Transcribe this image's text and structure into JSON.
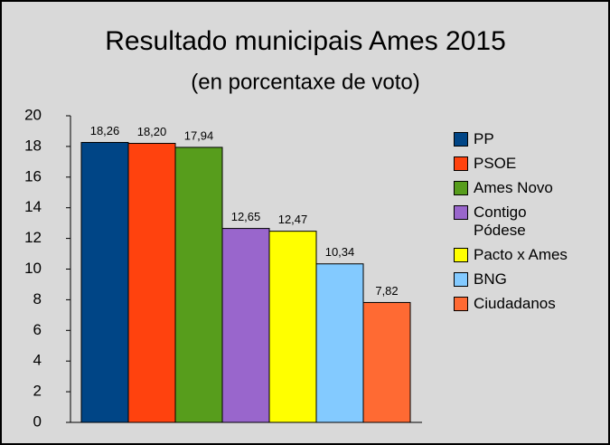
{
  "chart_data": {
    "type": "bar",
    "title": "Resultado municipais Ames 2015",
    "subtitle": "(en porcentaxe de voto)",
    "categories": [
      null
    ],
    "series": [
      {
        "name": "PP",
        "color": "#004586",
        "values": [
          18.26
        ],
        "value_labels": [
          "18,26"
        ]
      },
      {
        "name": "PSOE",
        "color": "#ff420e",
        "values": [
          18.2
        ],
        "value_labels": [
          "18,20"
        ]
      },
      {
        "name": "Ames Novo",
        "color": "#579d1c",
        "values": [
          17.94
        ],
        "value_labels": [
          "17,94"
        ]
      },
      {
        "name": "Contigo Pódese",
        "color": "#9966cc",
        "values": [
          12.65
        ],
        "value_labels": [
          "12,65"
        ]
      },
      {
        "name": "Pacto x Ames",
        "color": "#ffff00",
        "values": [
          12.47
        ],
        "value_labels": [
          "12,47"
        ]
      },
      {
        "name": "BNG",
        "color": "#83caff",
        "values": [
          10.34
        ],
        "value_labels": [
          "10,34"
        ]
      },
      {
        "name": "Ciudadanos",
        "color": "#ff6a33",
        "values": [
          7.82
        ],
        "value_labels": [
          "7,82"
        ]
      }
    ],
    "ylim": [
      0,
      20
    ],
    "yticks": [
      0,
      2,
      4,
      6,
      8,
      10,
      12,
      14,
      16,
      18,
      20
    ],
    "grid": false,
    "legend": "right"
  }
}
